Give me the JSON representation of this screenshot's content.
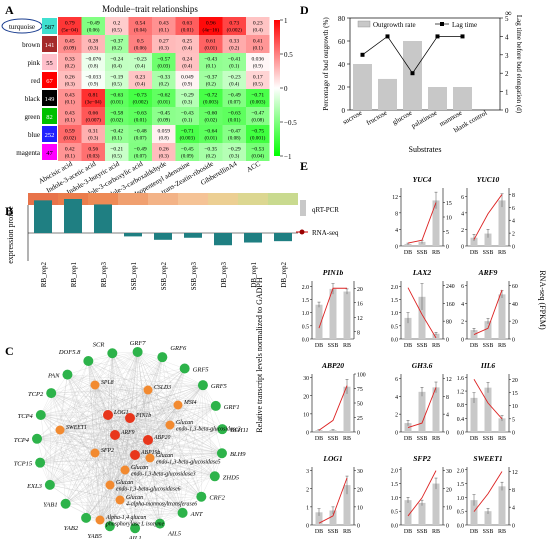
{
  "panels": {
    "A": {
      "letter": "A",
      "title": "Module−trait relationships",
      "modules": [
        {
          "name": "turquoise",
          "n": "587",
          "color": "#40E0D0"
        },
        {
          "name": "brown",
          "n": "141",
          "color": "#A52A2A"
        },
        {
          "name": "pink",
          "n": "55",
          "color": "#FFC0CB"
        },
        {
          "name": "red",
          "n": "67",
          "color": "#FF0000"
        },
        {
          "name": "black",
          "n": "149",
          "color": "#000000"
        },
        {
          "name": "green",
          "n": "82",
          "color": "#00C000"
        },
        {
          "name": "blue",
          "n": "252",
          "color": "#2020FF"
        },
        {
          "name": "magenta",
          "n": "47",
          "color": "#FF00FF"
        }
      ],
      "traits": [
        "Abscisic acid",
        "Indole-3-acetic acid",
        "Indole-3-butyric acid",
        "Indole-3-carboxylic acid",
        "Indole-3-carboxaldehyde",
        "Isopentenyl adenosine",
        "trans-Zeatin-riboside",
        "GibberellinA4",
        "ACC"
      ],
      "cells": [
        [
          [
            "0.79",
            "(5e−04)"
          ],
          [
            "−0.49",
            "(0.06)"
          ],
          [
            "0.2",
            "(0.5)"
          ],
          [
            "0.54",
            "(0.04)"
          ],
          [
            "0.43",
            "(0.1)"
          ],
          [
            "0.63",
            "(0.01)"
          ],
          [
            "0.96",
            "(4e−16)"
          ],
          [
            "0.73",
            "(0.002)"
          ],
          [
            "0.23",
            "(0.4)"
          ]
        ],
        [
          [
            "0.45",
            "(0.09)"
          ],
          [
            "0.28",
            "(0.3)"
          ],
          [
            "−0.37",
            "(0.2)"
          ],
          [
            "0.5",
            "(0.06)"
          ],
          [
            "0.27",
            "(0.3)"
          ],
          [
            "0.25",
            "(0.4)"
          ],
          [
            "0.61",
            "(0.01)"
          ],
          [
            "0.33",
            "(0.2)"
          ],
          [
            "0.41",
            "(0.1)"
          ]
        ],
        [
          [
            "0.33",
            "(0.2)"
          ],
          [
            "−0.076",
            "(0.8)"
          ],
          [
            "−0.24",
            "(0.4)"
          ],
          [
            "−0.23",
            "(0.4)"
          ],
          [
            "−0.57",
            "(0.03)"
          ],
          [
            "0.24",
            "(0.4)"
          ],
          [
            "−0.43",
            "(0.1)"
          ],
          [
            "−0.41",
            "(0.1)"
          ],
          [
            "0.036",
            "(0.9)"
          ]
        ],
        [
          [
            "0.26",
            "(0.3)"
          ],
          [
            "−0.033",
            "(0.9)"
          ],
          [
            "−0.19",
            "(0.5)"
          ],
          [
            "0.23",
            "(0.4)"
          ],
          [
            "−0.33",
            "(0.2)"
          ],
          [
            "0.049",
            "(0.9)"
          ],
          [
            "−0.37",
            "(0.2)"
          ],
          [
            "−0.23",
            "(0.4)"
          ],
          [
            "0.17",
            "(0.5)"
          ]
        ],
        [
          [
            "0.43",
            "(0.1)"
          ],
          [
            "0.81",
            "(3e−04)"
          ],
          [
            "−0.63",
            "(0.01)"
          ],
          [
            "−0.73",
            "(0.002)"
          ],
          [
            "−0.62",
            "(0.01)"
          ],
          [
            "−0.29",
            "(0.3)"
          ],
          [
            "−0.72",
            "(0.003)"
          ],
          [
            "−0.49",
            "(0.07)"
          ],
          [
            "−0.71",
            "(0.003)"
          ]
        ],
        [
          [
            "0.43",
            "(0.1)"
          ],
          [
            "0.66",
            "(0.007)"
          ],
          [
            "−0.58",
            "(0.02)"
          ],
          [
            "−0.63",
            "(0.01)"
          ],
          [
            "−0.45",
            "(0.09)"
          ],
          [
            "−0.43",
            "(0.1)"
          ],
          [
            "−0.60",
            "(0.02)"
          ],
          [
            "−0.63",
            "(0.01)"
          ],
          [
            "−0.47",
            "(0.08)"
          ]
        ],
        [
          [
            "0.59",
            "(0.02)"
          ],
          [
            "0.31",
            "(0.3)"
          ],
          [
            "−0.42",
            "(0.1)"
          ],
          [
            "−0.48",
            "(0.07)"
          ],
          [
            "0.059",
            "(0.8)"
          ],
          [
            "−0.71",
            "(0.003)"
          ],
          [
            "−0.64",
            "(0.01)"
          ],
          [
            "−0.47",
            "(0.08)"
          ],
          [
            "−0.75",
            "(0.001)"
          ]
        ],
        [
          [
            "0.42",
            "(0.1)"
          ],
          [
            "0.56",
            "(0.03)"
          ],
          [
            "−0.21",
            "(0.5)"
          ],
          [
            "−0.49",
            "(0.07)"
          ],
          [
            "0.26",
            "(0.3)"
          ],
          [
            "−0.45",
            "(0.09)"
          ],
          [
            "−0.35",
            "(0.2)"
          ],
          [
            "−0.29",
            "(0.3)"
          ],
          [
            "−0.53",
            "(0.04)"
          ]
        ]
      ],
      "colorbar_ticks": [
        "1",
        "0.5",
        "0",
        "−0.5",
        "−1"
      ]
    },
    "B": {
      "letter": "B",
      "ylabel": "expression profile",
      "samples": [
        "RB_rep2",
        "RB_rep1",
        "RB_rep3",
        "SSB_rep1",
        "SSB_rep2",
        "SSB_rep3",
        "DB_rep3",
        "DB_rep1",
        "DB_rep2"
      ],
      "values": [
        0.48,
        0.5,
        0.42,
        -0.05,
        -0.1,
        -0.07,
        -0.18,
        -0.14,
        -0.12
      ]
    },
    "C": {
      "letter": "C",
      "nodes": [
        {
          "label": "GRF7",
          "color": "#2db34a"
        },
        {
          "label": "GRF6",
          "color": "#2db34a"
        },
        {
          "label": "GRF5",
          "color": "#2db34a"
        },
        {
          "label": "GRF5",
          "color": "#2db34a"
        },
        {
          "label": "GRF1",
          "color": "#2db34a"
        },
        {
          "label": "BLH11",
          "color": "#2db34a"
        },
        {
          "label": "BLH9",
          "color": "#2db34a"
        },
        {
          "label": "ZHD5",
          "color": "#2db34a"
        },
        {
          "label": "CRF2",
          "color": "#2db34a"
        },
        {
          "label": "ANT",
          "color": "#2db34a"
        },
        {
          "label": "AIL5",
          "color": "#2db34a"
        },
        {
          "label": "AIL1",
          "color": "#2db34a"
        },
        {
          "label": "YAB5",
          "color": "#2db34a"
        },
        {
          "label": "YAB2",
          "color": "#2db34a"
        },
        {
          "label": "YAB1",
          "color": "#2db34a"
        },
        {
          "label": "EXL3",
          "color": "#2db34a"
        },
        {
          "label": "TCP15",
          "color": "#2db34a"
        },
        {
          "label": "TCP4",
          "color": "#2db34a"
        },
        {
          "label": "TCP4",
          "color": "#2db34a"
        },
        {
          "label": "TCP2",
          "color": "#2db34a"
        },
        {
          "label": "PAN",
          "color": "#2db34a"
        },
        {
          "label": "DOF5.8",
          "color": "#2db34a"
        },
        {
          "label": "SCR",
          "color": "#2db34a"
        },
        {
          "label": "SPL8",
          "color": "#f28a30"
        },
        {
          "label": "CSLD3",
          "color": "#f28a30"
        },
        {
          "label": "MSI4",
          "color": "#f28a30"
        },
        {
          "label": "SWEET1",
          "color": "#f28a30"
        },
        {
          "label": "SFP2",
          "color": "#f28a30"
        },
        {
          "label": "ARF9",
          "color": "#e8361c"
        },
        {
          "label": "PIN1b",
          "color": "#e8361c"
        },
        {
          "label": "ABP20",
          "color": "#e8361c"
        },
        {
          "label": "LOG1",
          "color": "#e8361c"
        },
        {
          "label": "ABP19b",
          "color": "#e8361c"
        },
        {
          "label": "Glucan endo-1,3-beta-glucosidase5",
          "color": "#f28a30"
        },
        {
          "label": "Glucan endo-1,3-beta-glucosidase2",
          "color": "#f28a30"
        },
        {
          "label": "Glucan endo-1,3-beta-glucosidase3",
          "color": "#f28a30"
        },
        {
          "label": "Glucan endo-1,3-beta-glucosidase6",
          "color": "#f28a30"
        },
        {
          "label": "Glucan 4-alpha-mannosyltransferase6",
          "color": "#f28a30"
        },
        {
          "label": "Alpha-1,4 glucan phosphorylase L isozyme",
          "color": "#f28a30"
        }
      ]
    },
    "D": {
      "letter": "D",
      "chart_data": {
        "type": "bar",
        "categories": [
          "sucrose",
          "fructose",
          "glucose",
          "palatinose",
          "mannose",
          "blank control"
        ],
        "series": [
          {
            "name": "Outgrowth rate",
            "values": [
              40,
              27,
              60,
              20,
              20,
              0
            ]
          },
          {
            "name": "Lag time",
            "values": [
              3,
              4,
              2,
              4,
              4,
              null
            ]
          }
        ],
        "xlabel": "Substrates",
        "ylabel": "Percentage of bud outgrowth (%)",
        "y2label": "Lag time before bud elongation (d)",
        "ylim": [
          0,
          80
        ],
        "y2lim": [
          0,
          5
        ],
        "yticks": [
          "0",
          "20",
          "40",
          "60",
          "80"
        ],
        "y2ticks": [
          "0",
          "1",
          "2",
          "3",
          "4",
          "5"
        ],
        "y2_top_label": "∞"
      }
    },
    "E": {
      "letter": "E",
      "y_left_label": "Relative transcript levels normalized to GADPH",
      "y_right_label": "RNA-seq (FPKM)",
      "legend": {
        "bar": "qRT-PCR",
        "line": "RNA-seq"
      },
      "x_categories": [
        "DB",
        "SSB",
        "RB"
      ],
      "genes": [
        {
          "name": "YUC4",
          "qpcr": [
            0.5,
            1.0,
            11
          ],
          "qerr": [
            0.2,
            0.4,
            2
          ],
          "rna": [
            1,
            2,
            15
          ],
          "lticks": [
            "0",
            "4",
            "8",
            "12"
          ],
          "rticks": [
            "0",
            "5",
            "10",
            "15"
          ],
          "lmax": 14,
          "rmax": 20
        },
        {
          "name": "YUC10",
          "qpcr": [
            1,
            1.5,
            5.5
          ],
          "qerr": [
            0.4,
            0.5,
            0.8
          ],
          "rna": [
            1,
            5,
            8
          ],
          "lticks": [
            "0",
            "2",
            "4",
            "6"
          ],
          "rticks": [
            "0",
            "2",
            "4",
            "6",
            "8"
          ],
          "lmax": 7,
          "rmax": 9
        },
        {
          "name": "PIN1b",
          "qpcr": [
            1.3,
            1.9,
            1.8
          ],
          "qerr": [
            0.1,
            0.2,
            0.1
          ],
          "rna": [
            9,
            20,
            20
          ],
          "lticks": [
            "0.0",
            "0.5",
            "1.0",
            "1.5",
            "2.0"
          ],
          "rticks": [
            "8",
            "12",
            "16",
            "20"
          ],
          "lmax": 2.2,
          "rmax": 22,
          "rmin": 6
        },
        {
          "name": "LAX2",
          "qpcr": [
            0.8,
            1.6,
            0.2
          ],
          "qerr": [
            0.2,
            0.5,
            0.05
          ],
          "rna": [
            230,
            110,
            5
          ],
          "lticks": [
            "0.0",
            "0.5",
            "1.0",
            "1.5",
            "2.0"
          ],
          "rticks": [
            "0",
            "80",
            "160",
            "240"
          ],
          "lmax": 2.2,
          "rmax": 260
        },
        {
          "name": "ARF9",
          "qpcr": [
            1,
            2,
            5
          ],
          "qerr": [
            0.2,
            0.3,
            0.4
          ],
          "rna": [
            5,
            12,
            55
          ],
          "lticks": [
            "0",
            "2",
            "4",
            "6"
          ],
          "rticks": [
            "0",
            "20",
            "40",
            "60"
          ],
          "lmax": 6.5,
          "rmax": 65
        },
        {
          "name": "ABP20",
          "qpcr": [
            1,
            1,
            25
          ],
          "qerr": [
            0.3,
            0.3,
            4
          ],
          "rna": [
            3,
            20,
            80
          ],
          "lticks": [
            "0",
            "10",
            "20",
            "30"
          ],
          "rticks": [
            "0",
            "25",
            "50",
            "75",
            "100"
          ],
          "lmax": 32,
          "rmax": 100
        },
        {
          "name": "GH3.6",
          "qpcr": [
            1,
            4.5,
            5
          ],
          "qerr": [
            0.3,
            0.5,
            0.6
          ],
          "rna": [
            1,
            2,
            10
          ],
          "lticks": [
            "0",
            "2",
            "4",
            "6"
          ],
          "rticks": [
            "0",
            "4",
            "8",
            "12"
          ],
          "lmax": 6.5,
          "rmax": 13
        },
        {
          "name": "IIL6",
          "qpcr": [
            1,
            1.3,
            0.4
          ],
          "qerr": [
            0.15,
            0.15,
            0.08
          ],
          "rna": [
            20,
            11,
            5
          ],
          "lticks": [
            "0.0",
            "0.4",
            "0.8",
            "1.2",
            "1.6"
          ],
          "rticks": [
            "0",
            "5",
            "10",
            "15",
            "20"
          ],
          "lmax": 1.7,
          "rmax": 22
        },
        {
          "name": "LOG1",
          "qpcr": [
            0.7,
            0.8,
            2.2
          ],
          "qerr": [
            0.2,
            0.2,
            0.5
          ],
          "rna": [
            1,
            5,
            26
          ],
          "lticks": [
            "0",
            "1",
            "2",
            "3"
          ],
          "rticks": [
            "0",
            "10",
            "20",
            "30"
          ],
          "lmax": 3.2,
          "rmax": 32
        },
        {
          "name": "SFP2",
          "qpcr": [
            0.9,
            0.8,
            1.5
          ],
          "qerr": [
            0.1,
            0.1,
            0.2
          ],
          "rna": [
            5,
            15,
            30
          ],
          "lticks": [
            "0.0",
            "0.5",
            "1.0",
            "1.5",
            "2.0"
          ],
          "rticks": [
            "0",
            "10",
            "20",
            "30"
          ],
          "lmax": 2.1,
          "rmax": 32
        },
        {
          "name": "SWEET1",
          "qpcr": [
            0.9,
            0.5,
            1.4
          ],
          "qerr": [
            0.2,
            0.1,
            0.15
          ],
          "rna": [
            3,
            7,
            12
          ],
          "lticks": [
            "0.0",
            "0.5",
            "1.0",
            "1.5",
            "2.0"
          ],
          "rticks": [
            "0",
            "4",
            "8",
            "12"
          ],
          "lmax": 2.1,
          "rmax": 13
        }
      ]
    }
  }
}
